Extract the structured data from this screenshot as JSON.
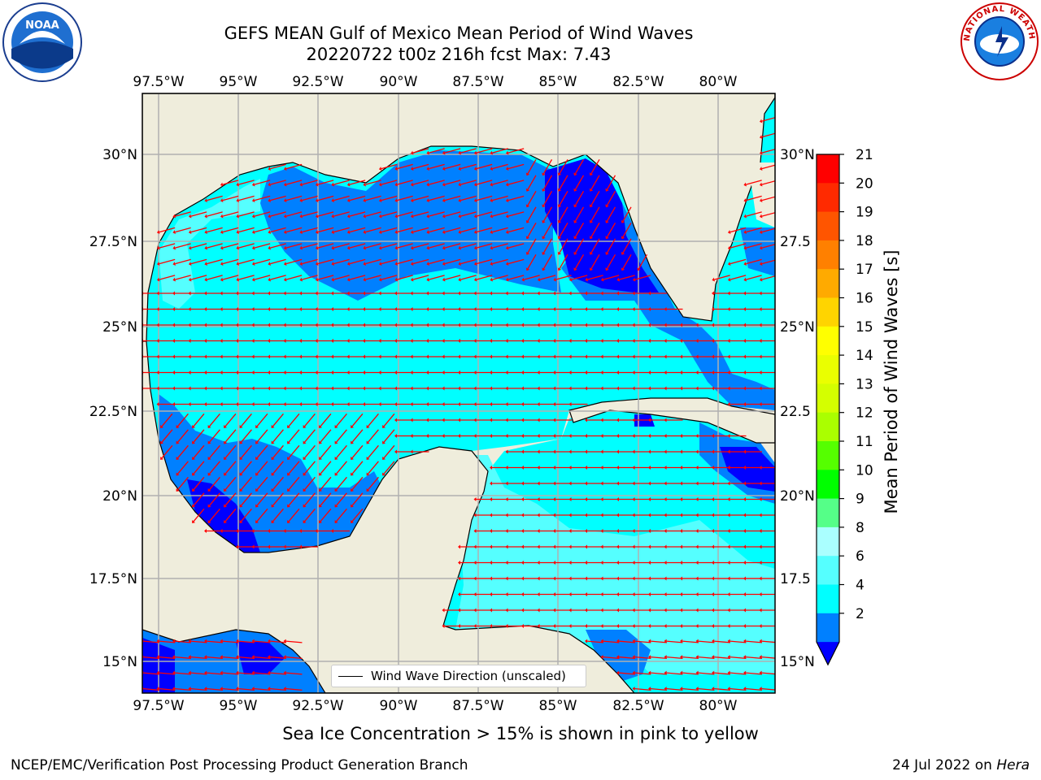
{
  "title_line1": "GEFS MEAN Gulf of Mexico Mean Period of Wind Waves",
  "title_line2": "20220722 t00z 216h fcst   Max: 7.43",
  "lon_labels": [
    "97.5°W",
    "95°W",
    "92.5°W",
    "90°W",
    "87.5°W",
    "85°W",
    "82.5°W",
    "80°W"
  ],
  "lat_labels_left": [
    "30°N",
    "27.5°N",
    "25°N",
    "22.5°N",
    "20°N",
    "17.5°N",
    "15°N"
  ],
  "lat_labels_right": [
    "30°N",
    "27.5",
    "25°N",
    "22.5",
    "20°N",
    "17.5",
    "15°N"
  ],
  "legend_label": "Wind Wave Direction (unscaled)",
  "colorbar": {
    "title": "Mean Period of Wind Waves [s]",
    "ticks": [
      "21",
      "20",
      "19",
      "18",
      "17",
      "16",
      "15",
      "14",
      "13",
      "12",
      "11",
      "10",
      "9",
      "8",
      "6",
      "4",
      "2"
    ],
    "colors": [
      "#ff0000",
      "#ff2a00",
      "#ff5500",
      "#ff8000",
      "#ffaa00",
      "#ffd400",
      "#ffff00",
      "#eaff00",
      "#d4ff00",
      "#aaff00",
      "#55ff00",
      "#00ff00",
      "#55ff88",
      "#aaffff",
      "#55ffff",
      "#00ffff",
      "#0080ff",
      "#0000ff"
    ]
  },
  "colors": {
    "land": "#efeddc",
    "water_cyan": "#00ffff",
    "water_lightcyan": "#55ffff",
    "water_blue": "#0080ff",
    "water_darkblue": "#0000ff",
    "arrow": "#ff0000",
    "grid": "#b0b0b0"
  },
  "subcaption": "Sea Ice Concentration > 15% is shown in pink to yellow",
  "footer_left": "NCEP/EMC/Verification Post Processing Product Generation Branch",
  "footer_right_date": "24 Jul 2022 on ",
  "footer_right_host": "Hera",
  "logos": {
    "left": "NOAA",
    "right": "NATIONAL WEATHER SERVICE"
  }
}
